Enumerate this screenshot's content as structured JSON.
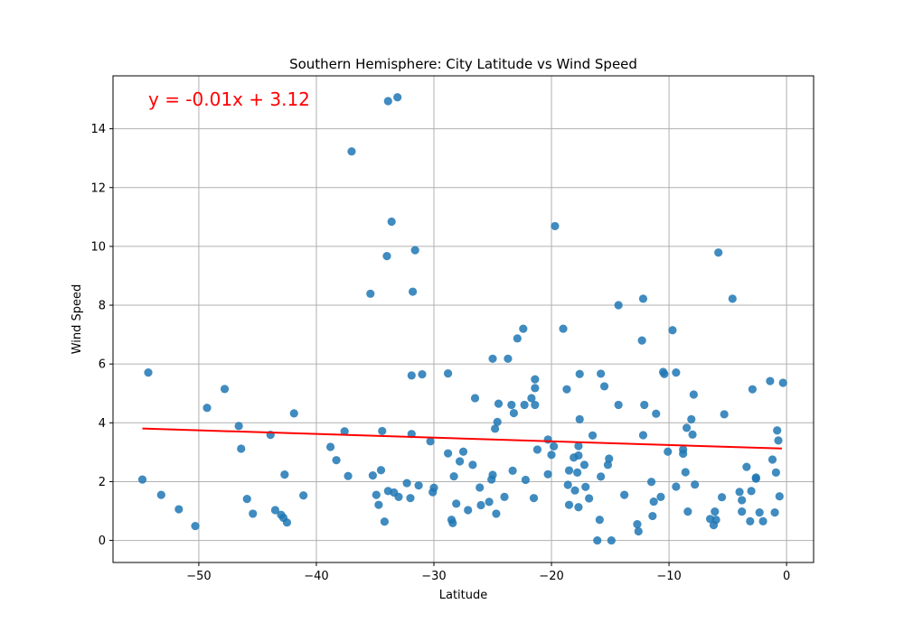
{
  "chart_data": {
    "type": "scatter",
    "title": "Southern Hemisphere: City Latitude vs Wind Speed",
    "xlabel": "Latitude",
    "ylabel": "Wind Speed",
    "xlim": [
      -57.3,
      2.3
    ],
    "ylim": [
      -0.75,
      15.8
    ],
    "xticks": [
      -50,
      -40,
      -30,
      -20,
      -10,
      0
    ],
    "yticks": [
      0,
      2,
      4,
      6,
      8,
      10,
      12,
      14
    ],
    "grid": true,
    "point_color": "#1f77b4",
    "line_color": "#ff0000",
    "regression": {
      "equation": "y = -0.01x + 3.12",
      "slope": -0.0125,
      "intercept": 3.12,
      "x_range": [
        -54.8,
        -0.4
      ]
    },
    "points": [
      [
        -54.8,
        2.07
      ],
      [
        -54.3,
        5.71
      ],
      [
        -53.2,
        1.55
      ],
      [
        -51.7,
        1.06
      ],
      [
        -50.3,
        0.49
      ],
      [
        -49.3,
        4.51
      ],
      [
        -47.8,
        5.15
      ],
      [
        -46.6,
        3.89
      ],
      [
        -46.4,
        3.12
      ],
      [
        -45.9,
        1.41
      ],
      [
        -45.4,
        0.91
      ],
      [
        -43.9,
        3.59
      ],
      [
        -43.5,
        1.03
      ],
      [
        -43.0,
        0.87
      ],
      [
        -42.8,
        0.77
      ],
      [
        -42.7,
        2.24
      ],
      [
        -42.5,
        0.61
      ],
      [
        -41.9,
        4.32
      ],
      [
        -41.1,
        1.53
      ],
      [
        -38.8,
        3.18
      ],
      [
        -38.3,
        2.73
      ],
      [
        -37.6,
        3.71
      ],
      [
        -37.3,
        2.19
      ],
      [
        -37.0,
        13.23
      ],
      [
        -35.4,
        8.39
      ],
      [
        -35.2,
        2.21
      ],
      [
        -34.9,
        1.55
      ],
      [
        -34.7,
        1.21
      ],
      [
        -34.5,
        2.39
      ],
      [
        -34.4,
        3.72
      ],
      [
        -34.2,
        0.64
      ],
      [
        -34.0,
        9.67
      ],
      [
        -33.9,
        14.94
      ],
      [
        -33.9,
        1.68
      ],
      [
        -33.6,
        10.84
      ],
      [
        -33.4,
        1.63
      ],
      [
        -33.1,
        15.07
      ],
      [
        -33.0,
        1.48
      ],
      [
        -32.3,
        1.95
      ],
      [
        -32.0,
        1.44
      ],
      [
        -31.9,
        5.61
      ],
      [
        -31.9,
        3.62
      ],
      [
        -31.8,
        8.46
      ],
      [
        -31.6,
        9.87
      ],
      [
        -31.3,
        1.87
      ],
      [
        -31.0,
        5.65
      ],
      [
        -30.3,
        3.37
      ],
      [
        -30.1,
        1.64
      ],
      [
        -30.0,
        1.79
      ],
      [
        -28.8,
        2.96
      ],
      [
        -28.8,
        5.68
      ],
      [
        -28.5,
        0.7
      ],
      [
        -28.4,
        0.59
      ],
      [
        -28.3,
        2.18
      ],
      [
        -28.1,
        1.25
      ],
      [
        -27.8,
        2.69
      ],
      [
        -27.5,
        3.02
      ],
      [
        -27.1,
        1.03
      ],
      [
        -26.7,
        2.57
      ],
      [
        -26.5,
        4.84
      ],
      [
        -26.1,
        1.8
      ],
      [
        -26.0,
        1.2
      ],
      [
        -25.3,
        1.31
      ],
      [
        -25.1,
        2.07
      ],
      [
        -25.0,
        2.23
      ],
      [
        -25.0,
        6.18
      ],
      [
        -24.8,
        3.8
      ],
      [
        -24.7,
        0.91
      ],
      [
        -24.6,
        4.03
      ],
      [
        -24.5,
        4.65
      ],
      [
        -24.0,
        1.48
      ],
      [
        -23.7,
        6.18
      ],
      [
        -23.4,
        4.61
      ],
      [
        -23.3,
        2.37
      ],
      [
        -23.2,
        4.33
      ],
      [
        -22.9,
        6.87
      ],
      [
        -22.4,
        7.2
      ],
      [
        -22.3,
        4.61
      ],
      [
        -22.2,
        2.06
      ],
      [
        -21.7,
        4.84
      ],
      [
        -21.5,
        1.44
      ],
      [
        -21.4,
        5.18
      ],
      [
        -21.4,
        5.48
      ],
      [
        -21.4,
        4.61
      ],
      [
        -21.2,
        3.09
      ],
      [
        -20.3,
        2.25
      ],
      [
        -20.3,
        3.43
      ],
      [
        -20.0,
        2.91
      ],
      [
        -19.8,
        3.2
      ],
      [
        -19.7,
        10.69
      ],
      [
        -19.0,
        7.2
      ],
      [
        -18.7,
        5.14
      ],
      [
        -18.6,
        1.89
      ],
      [
        -18.5,
        2.38
      ],
      [
        -18.5,
        1.21
      ],
      [
        -18.1,
        2.82
      ],
      [
        -18.0,
        1.7
      ],
      [
        -17.8,
        2.31
      ],
      [
        -17.7,
        1.13
      ],
      [
        -17.7,
        3.21
      ],
      [
        -17.7,
        2.89
      ],
      [
        -17.6,
        4.12
      ],
      [
        -17.6,
        5.66
      ],
      [
        -17.2,
        2.57
      ],
      [
        -17.1,
        1.82
      ],
      [
        -16.8,
        1.43
      ],
      [
        -16.5,
        3.57
      ],
      [
        -16.1,
        0.0
      ],
      [
        -15.9,
        0.7
      ],
      [
        -15.8,
        2.17
      ],
      [
        -15.8,
        5.67
      ],
      [
        -15.5,
        5.24
      ],
      [
        -15.2,
        2.57
      ],
      [
        -15.1,
        2.78
      ],
      [
        -14.9,
        0.0
      ],
      [
        -14.3,
        8.0
      ],
      [
        -14.3,
        4.61
      ],
      [
        -13.8,
        1.55
      ],
      [
        -12.7,
        0.55
      ],
      [
        -12.6,
        0.31
      ],
      [
        -12.3,
        6.8
      ],
      [
        -12.2,
        8.22
      ],
      [
        -12.2,
        3.58
      ],
      [
        -12.1,
        4.61
      ],
      [
        -11.5,
        1.99
      ],
      [
        -11.4,
        0.83
      ],
      [
        -11.3,
        1.32
      ],
      [
        -11.1,
        4.31
      ],
      [
        -10.7,
        1.48
      ],
      [
        -10.5,
        5.73
      ],
      [
        -10.4,
        5.66
      ],
      [
        -10.1,
        3.02
      ],
      [
        -9.7,
        7.15
      ],
      [
        -9.4,
        5.71
      ],
      [
        -9.4,
        1.83
      ],
      [
        -8.8,
        3.09
      ],
      [
        -8.8,
        2.95
      ],
      [
        -8.6,
        2.32
      ],
      [
        -8.5,
        3.83
      ],
      [
        -8.4,
        0.98
      ],
      [
        -8.1,
        4.12
      ],
      [
        -8.0,
        3.6
      ],
      [
        -7.9,
        4.96
      ],
      [
        -7.8,
        1.9
      ],
      [
        -6.5,
        0.73
      ],
      [
        -6.2,
        0.52
      ],
      [
        -6.1,
        0.98
      ],
      [
        -6.0,
        0.7
      ],
      [
        -5.8,
        9.79
      ],
      [
        -5.5,
        1.47
      ],
      [
        -5.3,
        4.29
      ],
      [
        -4.6,
        8.22
      ],
      [
        -4.0,
        1.65
      ],
      [
        -3.8,
        1.37
      ],
      [
        -3.8,
        0.98
      ],
      [
        -3.4,
        2.5
      ],
      [
        -3.1,
        0.65
      ],
      [
        -3.0,
        1.68
      ],
      [
        -2.9,
        5.14
      ],
      [
        -2.6,
        2.1
      ],
      [
        -2.6,
        2.14
      ],
      [
        -2.3,
        0.95
      ],
      [
        -2.0,
        0.65
      ],
      [
        -1.4,
        5.42
      ],
      [
        -1.2,
        2.75
      ],
      [
        -1.0,
        0.95
      ],
      [
        -0.9,
        2.31
      ],
      [
        -0.8,
        3.74
      ],
      [
        -0.7,
        3.4
      ],
      [
        -0.6,
        1.5
      ],
      [
        -0.3,
        5.36
      ]
    ]
  }
}
